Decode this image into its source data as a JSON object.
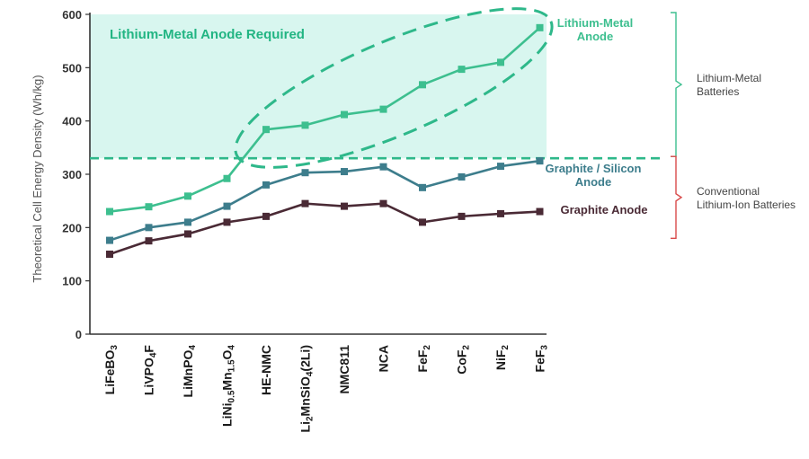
{
  "chart_data": {
    "type": "line",
    "ylabel": "Theoretical Cell Energy Density (Wh/kg)",
    "ylim": [
      0,
      600
    ],
    "yticks": [
      0,
      100,
      200,
      300,
      400,
      500,
      600
    ],
    "categories": [
      {
        "base": "LiFeBO",
        "parts": [
          [
            "LiFeBO",
            ""
          ],
          [
            "3",
            "sub"
          ]
        ]
      },
      {
        "base": "LiVPO4F",
        "parts": [
          [
            "LiVPO",
            ""
          ],
          [
            "4",
            "sub"
          ],
          [
            "F",
            ""
          ]
        ]
      },
      {
        "base": "LiMnPO4",
        "parts": [
          [
            "LiMnPO",
            ""
          ],
          [
            "4",
            "sub"
          ]
        ]
      },
      {
        "base": "LiNi0.5Mn1.5O4",
        "parts": [
          [
            "LiNi",
            ""
          ],
          [
            "0.5",
            "sub"
          ],
          [
            "Mn",
            ""
          ],
          [
            "1.5",
            "sub"
          ],
          [
            "O",
            ""
          ],
          [
            "4",
            "sub"
          ]
        ]
      },
      {
        "base": "HE-NMC",
        "parts": [
          [
            "HE-NMC",
            ""
          ]
        ]
      },
      {
        "base": "Li2MnSiO4(2Li)",
        "parts": [
          [
            "Li",
            ""
          ],
          [
            "2",
            "sub"
          ],
          [
            "MnSiO",
            ""
          ],
          [
            "4",
            "sub"
          ],
          [
            "(2Li)",
            ""
          ]
        ]
      },
      {
        "base": "NMC811",
        "parts": [
          [
            "NMC811",
            ""
          ]
        ]
      },
      {
        "base": "NCA",
        "parts": [
          [
            "NCA",
            ""
          ]
        ]
      },
      {
        "base": "FeF2",
        "parts": [
          [
            "FeF",
            ""
          ],
          [
            "2",
            "sub"
          ]
        ]
      },
      {
        "base": "CoF2",
        "parts": [
          [
            "CoF",
            ""
          ],
          [
            "2",
            "sub"
          ]
        ]
      },
      {
        "base": "NiF2",
        "parts": [
          [
            "NiF",
            ""
          ],
          [
            "2",
            "sub"
          ]
        ]
      },
      {
        "base": "FeF3",
        "parts": [
          [
            "FeF",
            ""
          ],
          [
            "3",
            "sub"
          ]
        ]
      }
    ],
    "series": [
      {
        "name": "Lithium-Metal Anode",
        "color": "#3dbf8f",
        "label_lines": [
          "Lithium-Metal",
          "Anode"
        ],
        "values": [
          230,
          239,
          259,
          292,
          384,
          392,
          412,
          422,
          468,
          497,
          510,
          575
        ]
      },
      {
        "name": "Graphite / Silicon Anode",
        "color": "#3d7d8c",
        "label_lines": [
          "Graphite / Silicon",
          "Anode"
        ],
        "values": [
          176,
          200,
          210,
          240,
          280,
          303,
          305,
          314,
          275,
          295,
          315,
          325
        ]
      },
      {
        "name": "Graphite Anode",
        "color": "#4a2a35",
        "label_lines": [
          "Graphite Anode"
        ],
        "values": [
          150,
          175,
          188,
          210,
          221,
          245,
          240,
          245,
          210,
          221,
          226,
          230
        ]
      }
    ],
    "threshold": {
      "value": 330,
      "color": "#2eb88a"
    },
    "region": {
      "label": "Lithium-Metal Anode Required",
      "fill": "#d8f6ef",
      "label_color": "#22b583"
    },
    "brackets": [
      {
        "lines": [
          "Lithium-Metal",
          "Batteries"
        ],
        "color": "#3dbf8f",
        "range": [
          330,
          600
        ]
      },
      {
        "lines": [
          "Conventional",
          "Lithium-Ion Batteries"
        ],
        "color": "#d94b4b",
        "range": [
          200,
          330
        ]
      }
    ],
    "grid": false,
    "legend": "inline-right"
  }
}
